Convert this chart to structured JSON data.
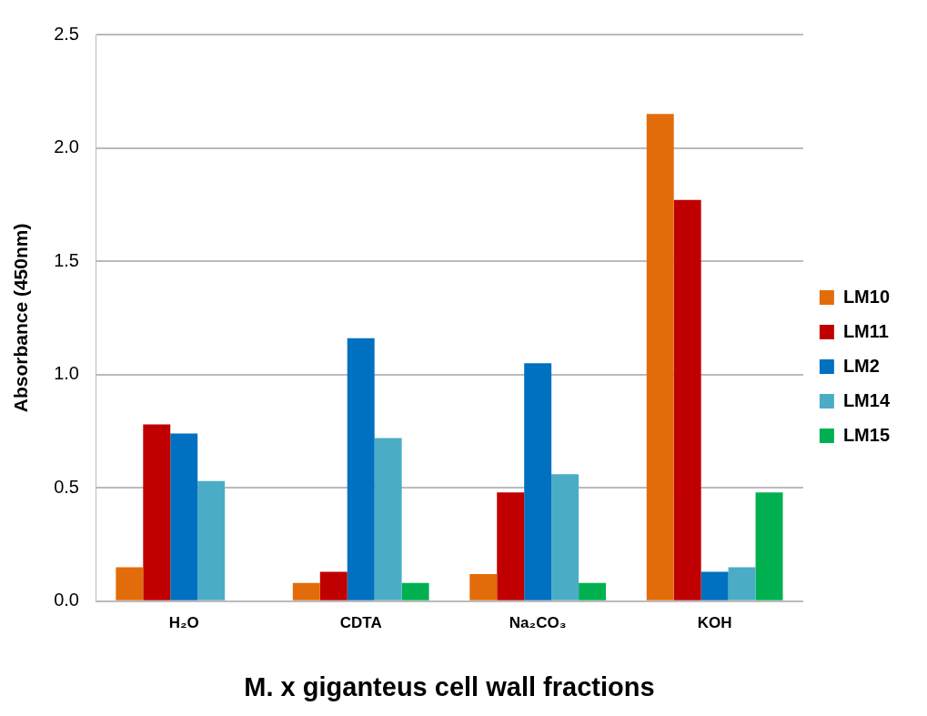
{
  "chart_data": {
    "type": "bar",
    "xlabel": "M. x giganteus cell wall fractions",
    "ylabel": "Absorbance (450nm)",
    "categories": [
      "H₂O",
      "CDTA",
      "Na₂CO₃",
      "KOH"
    ],
    "series": [
      {
        "name": "LM10",
        "color": "#e36c0a",
        "values": [
          0.15,
          0.08,
          0.12,
          2.15
        ]
      },
      {
        "name": "LM11",
        "color": "#c00000",
        "values": [
          0.78,
          0.13,
          0.48,
          1.77
        ]
      },
      {
        "name": "LM2",
        "color": "#0070c0",
        "values": [
          0.74,
          1.16,
          1.05,
          0.13
        ]
      },
      {
        "name": "LM14",
        "color": "#4bacc6",
        "values": [
          0.53,
          0.72,
          0.56,
          0.15
        ]
      },
      {
        "name": "LM15",
        "color": "#00b050",
        "values": [
          null,
          0.08,
          0.08,
          0.48
        ]
      }
    ],
    "ylim": [
      0,
      2.5
    ],
    "yticks": [
      {
        "value": 0,
        "label": "0.0"
      },
      0.5,
      {
        "value": 1,
        "label": "1.0"
      },
      1.5,
      {
        "value": 2,
        "label": "2.0"
      },
      2.5
    ],
    "grid": "y",
    "legend": "right"
  }
}
